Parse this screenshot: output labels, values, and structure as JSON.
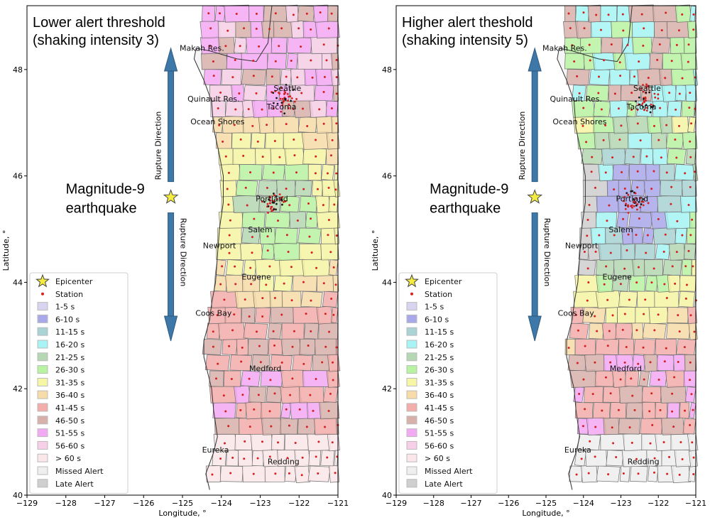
{
  "figure": {
    "panels": [
      {
        "id": "left",
        "title_line1": "Lower alert threshold",
        "title_line2": "(shaking intensity 3)",
        "quake_line1": "Magnitude-9",
        "quake_line2": "earthquake",
        "rupture_up": "Rupture Direction",
        "rupture_down": "Rupture Direction",
        "ylabel": "Latitude, °",
        "xlabel": "Longitude, °",
        "fill_scheme": "lower"
      },
      {
        "id": "right",
        "title_line1": "Higher alert theshold",
        "title_line2": "(shaking intensity 5)",
        "quake_line1": "Magnitude-9",
        "quake_line2": "earthquake",
        "rupture_up": "Rupture Direction",
        "rupture_down": "Rupture Direction",
        "ylabel": "Latitude, °",
        "xlabel": "Longitude, °",
        "fill_scheme": "higher"
      }
    ],
    "x_ticks": [
      "−129",
      "−128",
      "−127",
      "−126",
      "−125",
      "−124",
      "−123",
      "−122",
      "−121"
    ],
    "y_ticks": [
      "40",
      "42",
      "44",
      "46",
      "48"
    ],
    "x_range": [
      -129,
      -121
    ],
    "y_range": [
      40,
      49.2
    ],
    "epicenter": {
      "lon": -125.3,
      "lat": 45.6
    },
    "cities": [
      {
        "name": "Makah Res.",
        "lon": -124.5,
        "lat": 48.35
      },
      {
        "name": "Seattle",
        "lon": -122.3,
        "lat": 47.6
      },
      {
        "name": "Quinault Res.",
        "lon": -124.2,
        "lat": 47.4
      },
      {
        "name": "Tacoma",
        "lon": -122.45,
        "lat": 47.25
      },
      {
        "name": "Ocean Shores",
        "lon": -124.1,
        "lat": 46.97
      },
      {
        "name": "Portland",
        "lon": -122.7,
        "lat": 45.52
      },
      {
        "name": "Salem",
        "lon": -123.0,
        "lat": 44.94
      },
      {
        "name": "Newport",
        "lon": -124.05,
        "lat": 44.64
      },
      {
        "name": "Eugene",
        "lon": -123.1,
        "lat": 44.05
      },
      {
        "name": "Coos Bay",
        "lon": -124.2,
        "lat": 43.37
      },
      {
        "name": "Medford",
        "lon": -122.87,
        "lat": 42.33
      },
      {
        "name": "Eureka",
        "lon": -124.15,
        "lat": 40.8
      },
      {
        "name": "Redding",
        "lon": -122.4,
        "lat": 40.58
      }
    ],
    "legend": [
      {
        "label": "Epicenter",
        "kind": "star",
        "color": "#f5ec42"
      },
      {
        "label": "Station",
        "kind": "dot",
        "color": "#d62020"
      },
      {
        "label": "1-5 s",
        "kind": "box",
        "color": "#d8d4f0"
      },
      {
        "label": "6-10 s",
        "kind": "box",
        "color": "#a9a8ea"
      },
      {
        "label": "11-15 s",
        "kind": "box",
        "color": "#a9d3d4"
      },
      {
        "label": "16-20 s",
        "kind": "box",
        "color": "#a6f4f5"
      },
      {
        "label": "21-25 s",
        "kind": "box",
        "color": "#b5d7b3"
      },
      {
        "label": "26-30 s",
        "kind": "box",
        "color": "#b8f3a2"
      },
      {
        "label": "31-35 s",
        "kind": "box",
        "color": "#f6f6a4"
      },
      {
        "label": "36-40 s",
        "kind": "box",
        "color": "#f7dca7"
      },
      {
        "label": "41-45 s",
        "kind": "box",
        "color": "#f3aeab"
      },
      {
        "label": "46-50 s",
        "kind": "box",
        "color": "#d8b0aa"
      },
      {
        "label": "51-55 s",
        "kind": "box",
        "color": "#f4a9f4"
      },
      {
        "label": "56-60 s",
        "kind": "box",
        "color": "#f7cfe6"
      },
      {
        "label": "> 60 s",
        "kind": "box",
        "color": "#fbe7ea"
      },
      {
        "label": "Missed Alert",
        "kind": "box",
        "color": "#efefef"
      },
      {
        "label": "Late Alert",
        "kind": "box",
        "color": "#cfcfcf"
      }
    ]
  }
}
